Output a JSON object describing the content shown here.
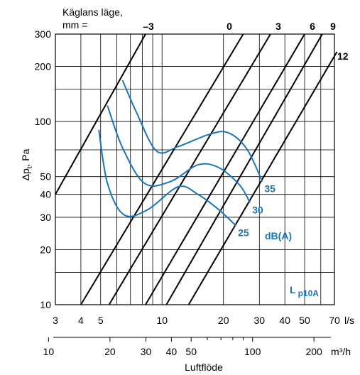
{
  "chart_data": {
    "type": "line",
    "x_axis_ls": {
      "scale": "log",
      "range": [
        3,
        70
      ],
      "ticks": [
        3,
        4,
        5,
        10,
        20,
        30,
        40,
        50,
        70
      ],
      "unit": "l/s"
    },
    "x_axis_m3h": {
      "scale": "log",
      "ticks": [
        10,
        20,
        30,
        40,
        50,
        100,
        200
      ],
      "unit": "m³/h"
    },
    "xlabel": "Luftflöde",
    "y_axis": {
      "scale": "log",
      "range": [
        10,
        300
      ],
      "ticks": [
        10,
        20,
        30,
        40,
        50,
        100,
        200,
        300
      ]
    },
    "ylabel_main": "Δp",
    "ylabel_sub": "t",
    "ylabel_rest": ", Pa",
    "cone_header_line1": "Käglans läge,",
    "cone_header_line2": "mm =",
    "cone_lines": [
      {
        "label": "–3",
        "points": [
          [
            3.0,
            40
          ],
          [
            8.3,
            300
          ]
        ]
      },
      {
        "label": "0",
        "points": [
          [
            4.0,
            10
          ],
          [
            25.0,
            300
          ]
        ]
      },
      {
        "label": "3",
        "points": [
          [
            5.5,
            10
          ],
          [
            34.0,
            300
          ]
        ]
      },
      {
        "label": "6",
        "points": [
          [
            8.3,
            10
          ],
          [
            50.0,
            300
          ]
        ]
      },
      {
        "label": "9",
        "points": [
          [
            10.5,
            10
          ],
          [
            61.0,
            300
          ]
        ]
      },
      {
        "label": "12",
        "points": [
          [
            13.5,
            10
          ],
          [
            72.0,
            240
          ]
        ]
      }
    ],
    "sound_curves": [
      {
        "name": "35",
        "points": [
          [
            6.4,
            168
          ],
          [
            7.5,
            112
          ],
          [
            9.4,
            69
          ],
          [
            12.0,
            73
          ],
          [
            17.0,
            85
          ],
          [
            21.0,
            87
          ],
          [
            26.0,
            71
          ],
          [
            31.0,
            47
          ]
        ]
      },
      {
        "name": "30",
        "points": [
          [
            5.4,
            122
          ],
          [
            6.4,
            72
          ],
          [
            8.2,
            46
          ],
          [
            11.0,
            47
          ],
          [
            15.0,
            58
          ],
          [
            19.0,
            56
          ],
          [
            24.0,
            45
          ],
          [
            27.0,
            36
          ]
        ]
      },
      {
        "name": "25",
        "points": [
          [
            4.9,
            90
          ],
          [
            5.4,
            46
          ],
          [
            6.5,
            31
          ],
          [
            8.5,
            33
          ],
          [
            12.0,
            44
          ],
          [
            15.0,
            40
          ],
          [
            19.0,
            33
          ],
          [
            23.0,
            27
          ]
        ]
      }
    ],
    "sound_unit": "dB(A)",
    "lp_main": "L",
    "lp_sub": "p10A",
    "grid": true,
    "colors": {
      "cone": "#000000",
      "curves": "#1a76b8",
      "grid": "#000000"
    }
  }
}
